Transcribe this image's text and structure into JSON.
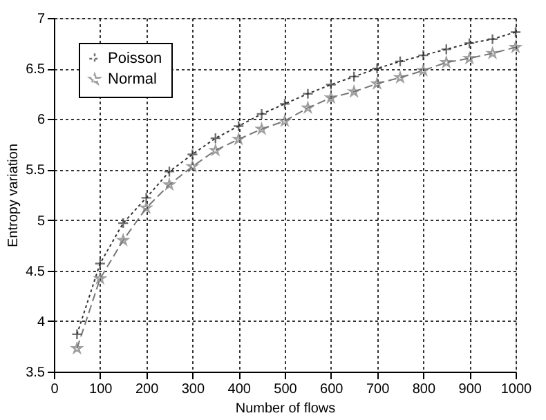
{
  "chart_data": {
    "type": "line",
    "xlabel": "Number of flows",
    "ylabel": "Entropy variation",
    "x": [
      50,
      100,
      150,
      200,
      250,
      300,
      350,
      400,
      450,
      500,
      550,
      600,
      650,
      700,
      750,
      800,
      850,
      900,
      950,
      1000
    ],
    "series": [
      {
        "name": "Poisson",
        "color": "#333333",
        "line_style": "dotted",
        "marker": "cross",
        "values": [
          3.87,
          4.57,
          4.97,
          5.22,
          5.48,
          5.65,
          5.81,
          5.93,
          6.05,
          6.15,
          6.25,
          6.34,
          6.42,
          6.5,
          6.57,
          6.63,
          6.69,
          6.75,
          6.79,
          6.86
        ]
      },
      {
        "name": "Normal",
        "color": "#777777",
        "line_style": "dashed",
        "marker": "star",
        "values": [
          3.73,
          4.42,
          4.8,
          5.12,
          5.35,
          5.53,
          5.69,
          5.8,
          5.9,
          5.98,
          6.11,
          6.21,
          6.27,
          6.35,
          6.41,
          6.48,
          6.56,
          6.6,
          6.65,
          6.71
        ]
      }
    ],
    "xlim": [
      0,
      1000
    ],
    "xticks": [
      0,
      100,
      200,
      300,
      400,
      500,
      600,
      700,
      800,
      900,
      {
        "value": 1000,
        "label": "1000"
      }
    ],
    "ylim": [
      3.5,
      7
    ],
    "yticks": [
      3.5,
      4,
      4.5,
      5,
      5.5,
      6,
      6.5,
      7
    ],
    "grid": true,
    "legend": "top left"
  }
}
